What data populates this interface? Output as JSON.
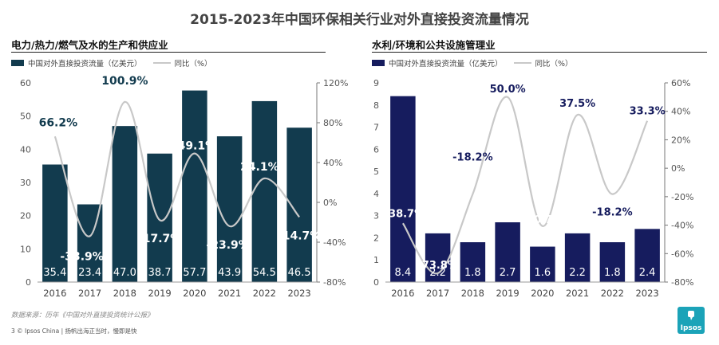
{
  "title": "2015-2023年中国环保相关行业对外直接投资流量情况",
  "source": "数据来源：历年《中国对外直接投资统计公报》",
  "footer": "3 © Ipsos China | 扬帆出海正当时，慢即是快",
  "logo_text": "Ipsos",
  "legend": {
    "bar": "中国对外直接投资流量（亿美元）",
    "line": "同比（%）"
  },
  "colors": {
    "left_bar": "#123b4e",
    "right_bar": "#161c5e",
    "line": "#c8c8c8"
  },
  "chart_data": [
    {
      "type": "bar",
      "title": "电力/热力/燃气及水的生产和供应业",
      "categories": [
        "2016",
        "2017",
        "2018",
        "2019",
        "2020",
        "2021",
        "2022",
        "2023"
      ],
      "series": [
        {
          "name": "中国对外直接投资流量（亿美元）",
          "type": "bar",
          "values": [
            35.4,
            23.4,
            47.0,
            38.7,
            57.7,
            43.9,
            54.5,
            46.5
          ],
          "labels": [
            "35.4",
            "23.4",
            "47.0",
            "38.7",
            "57.7",
            "43.9",
            "54.5",
            "46.5"
          ]
        },
        {
          "name": "同比（%）",
          "type": "line",
          "axis": "right",
          "values": [
            66.2,
            -33.9,
            100.9,
            -17.7,
            49.1,
            -23.9,
            24.1,
            -14.7
          ],
          "labels": [
            "66.2%",
            "-33.9%",
            "100.9%",
            "-17.7%",
            "49.1%",
            "-23.9%",
            "24.1%",
            "-14.7%"
          ]
        }
      ],
      "ylim": [
        0,
        60
      ],
      "yticks": [
        "0",
        "10",
        "20",
        "30",
        "40",
        "50",
        "60"
      ],
      "y2lim": [
        -80,
        120
      ],
      "y2ticks": [
        "-80%",
        "-40%",
        "0%",
        "40%",
        "80%",
        "120%"
      ]
    },
    {
      "type": "bar",
      "title": "水利/环境和公共设施管理业",
      "categories": [
        "2016",
        "2017",
        "2018",
        "2019",
        "2020",
        "2021",
        "2022",
        "2023"
      ],
      "series": [
        {
          "name": "中国对外直接投资流量（亿美元）",
          "type": "bar",
          "values": [
            8.4,
            2.2,
            1.8,
            2.7,
            1.6,
            2.2,
            1.8,
            2.4
          ],
          "labels": [
            "8.4",
            "2.2",
            "1.8",
            "2.7",
            "1.6",
            "2.2",
            "1.8",
            "2.4"
          ]
        },
        {
          "name": "同比（%）",
          "type": "line",
          "axis": "right",
          "values": [
            -38.7,
            -73.8,
            -18.2,
            50.0,
            -40.7,
            37.5,
            -18.2,
            33.3
          ],
          "labels": [
            "-38.7%",
            "-73.8%",
            "-18.2%",
            "50.0%",
            "-40.7%",
            "37.5%",
            "-18.2%",
            "33.3%"
          ]
        }
      ],
      "ylim": [
        0,
        9
      ],
      "yticks": [
        "0",
        "1",
        "2",
        "3",
        "4",
        "5",
        "6",
        "7",
        "8",
        "9"
      ],
      "y2lim": [
        -80,
        60
      ],
      "y2ticks": [
        "-80%",
        "-60%",
        "-40%",
        "-20%",
        "0%",
        "20%",
        "40%",
        "60%"
      ]
    }
  ]
}
